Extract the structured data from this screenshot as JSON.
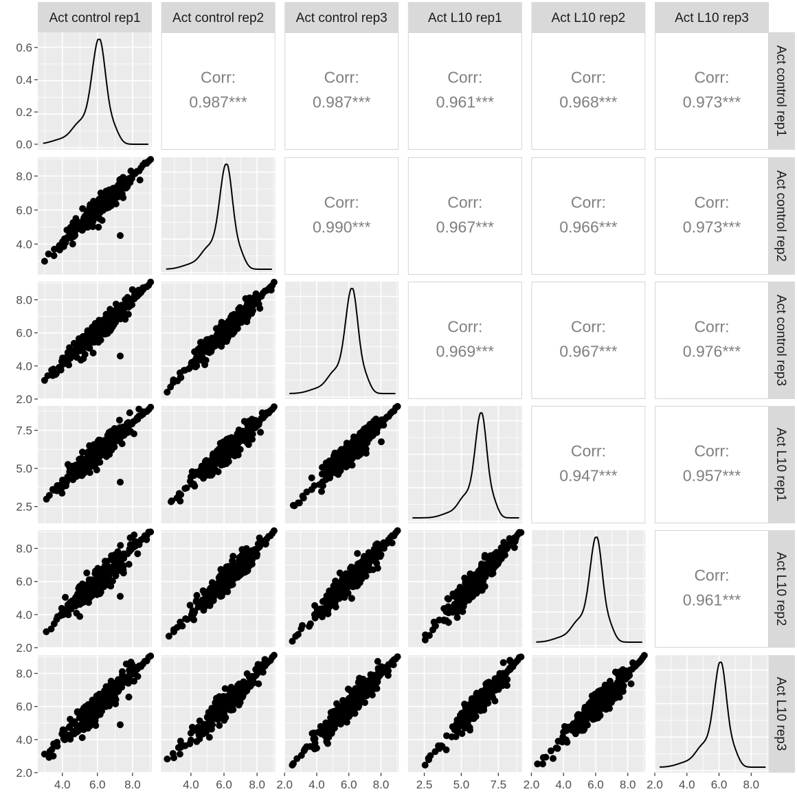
{
  "chart_data": {
    "type": "scatter",
    "title": "",
    "variables": [
      "Act control rep1",
      "Act control rep2",
      "Act control rep3",
      "Act L10 rep1",
      "Act L10 rep2",
      "Act L10 rep3"
    ],
    "row_strip_labels": [
      "Act control rep1",
      "Act control rep2",
      "Act control rep3",
      "Act L10 rep1",
      "Act L10 rep2",
      "Act L10 rep3"
    ],
    "upper_panel_label": "Corr:",
    "correlations": [
      {
        "row": 0,
        "col": 1,
        "value": "0.987***"
      },
      {
        "row": 0,
        "col": 2,
        "value": "0.987***"
      },
      {
        "row": 0,
        "col": 3,
        "value": "0.961***"
      },
      {
        "row": 0,
        "col": 4,
        "value": "0.968***"
      },
      {
        "row": 0,
        "col": 5,
        "value": "0.973***"
      },
      {
        "row": 1,
        "col": 2,
        "value": "0.990***"
      },
      {
        "row": 1,
        "col": 3,
        "value": "0.967***"
      },
      {
        "row": 1,
        "col": 4,
        "value": "0.966***"
      },
      {
        "row": 1,
        "col": 5,
        "value": "0.973***"
      },
      {
        "row": 2,
        "col": 3,
        "value": "0.969***"
      },
      {
        "row": 2,
        "col": 4,
        "value": "0.967***"
      },
      {
        "row": 2,
        "col": 5,
        "value": "0.976***"
      },
      {
        "row": 3,
        "col": 4,
        "value": "0.947***"
      },
      {
        "row": 3,
        "col": 5,
        "value": "0.957***"
      },
      {
        "row": 4,
        "col": 5,
        "value": "0.961***"
      }
    ],
    "column_ranges": [
      [
        2.6,
        9.1
      ],
      [
        2.2,
        9.1
      ],
      [
        2.0,
        9.1
      ],
      [
        1.4,
        9.1
      ],
      [
        2.0,
        9.1
      ],
      [
        2.0,
        9.1
      ]
    ],
    "row_ranges": [
      [
        2.6,
        9.1
      ],
      [
        2.2,
        9.1
      ],
      [
        2.0,
        9.1
      ],
      [
        1.4,
        9.1
      ],
      [
        2.0,
        9.1
      ],
      [
        2.0,
        9.1
      ]
    ],
    "x_ticks": [
      {
        "values": [
          4,
          6,
          8
        ],
        "labels": [
          "4.0",
          "6.0",
          "8.0"
        ]
      },
      {
        "values": [
          4,
          6,
          8
        ],
        "labels": [
          "4.0",
          "6.0",
          "8.0"
        ]
      },
      {
        "values": [
          2,
          4,
          6,
          8
        ],
        "labels": [
          "2.0",
          "4.0",
          "6.0",
          "8.0"
        ]
      },
      {
        "values": [
          2.5,
          5,
          7.5
        ],
        "labels": [
          "2.5",
          "5.0",
          "7.5"
        ]
      },
      {
        "values": [
          2,
          4,
          6,
          8
        ],
        "labels": [
          "2.0",
          "4.0",
          "6.0",
          "8.0"
        ]
      },
      {
        "values": [
          2,
          4,
          6,
          8
        ],
        "labels": [
          "2.0",
          "4.0",
          "6.0",
          "8.0"
        ]
      }
    ],
    "y_ticks": [
      {
        "values": [
          0,
          0.2,
          0.4,
          0.6
        ],
        "labels": [
          "0.0",
          "0.2",
          "0.4",
          "0.6"
        ]
      },
      {
        "values": [
          4,
          6,
          8
        ],
        "labels": [
          "4.0",
          "6.0",
          "8.0"
        ]
      },
      {
        "values": [
          2,
          4,
          6,
          8
        ],
        "labels": [
          "2.0",
          "4.0",
          "6.0",
          "8.0"
        ]
      },
      {
        "values": [
          2.5,
          5,
          7.5
        ],
        "labels": [
          "2.5",
          "5.0",
          "7.5"
        ]
      },
      {
        "values": [
          2,
          4,
          6,
          8
        ],
        "labels": [
          "2.0",
          "4.0",
          "6.0",
          "8.0"
        ]
      },
      {
        "values": [
          2,
          4,
          6,
          8
        ],
        "labels": [
          "2.0",
          "4.0",
          "6.0",
          "8.0"
        ]
      }
    ],
    "density_ylim": [
      0,
      0.66
    ],
    "density_peaks": [
      {
        "mode": 6.1,
        "peak": 0.65
      },
      {
        "mode": 6.15,
        "peak": 0.65
      },
      {
        "mode": 6.2,
        "peak": 0.65
      },
      {
        "mode": 6.35,
        "peak": 0.65
      },
      {
        "mode": 6.05,
        "peak": 0.65
      },
      {
        "mode": 6.1,
        "peak": 0.65
      }
    ],
    "outliers": [
      {
        "row": 1,
        "col": 0,
        "x": 7.3,
        "y": 4.5
      },
      {
        "row": 2,
        "col": 0,
        "x": 7.3,
        "y": 4.6
      },
      {
        "row": 3,
        "col": 0,
        "x": 7.3,
        "y": 4.1
      },
      {
        "row": 4,
        "col": 0,
        "x": 7.3,
        "y": 5.1
      },
      {
        "row": 5,
        "col": 0,
        "x": 7.3,
        "y": 4.9
      }
    ],
    "grid": true,
    "colors": {
      "panel_background": "#ebebeb",
      "grid": "#ffffff",
      "strip_background": "#d9d9d9",
      "points": "#000000",
      "correlation_text": "#7f7f7f"
    }
  }
}
